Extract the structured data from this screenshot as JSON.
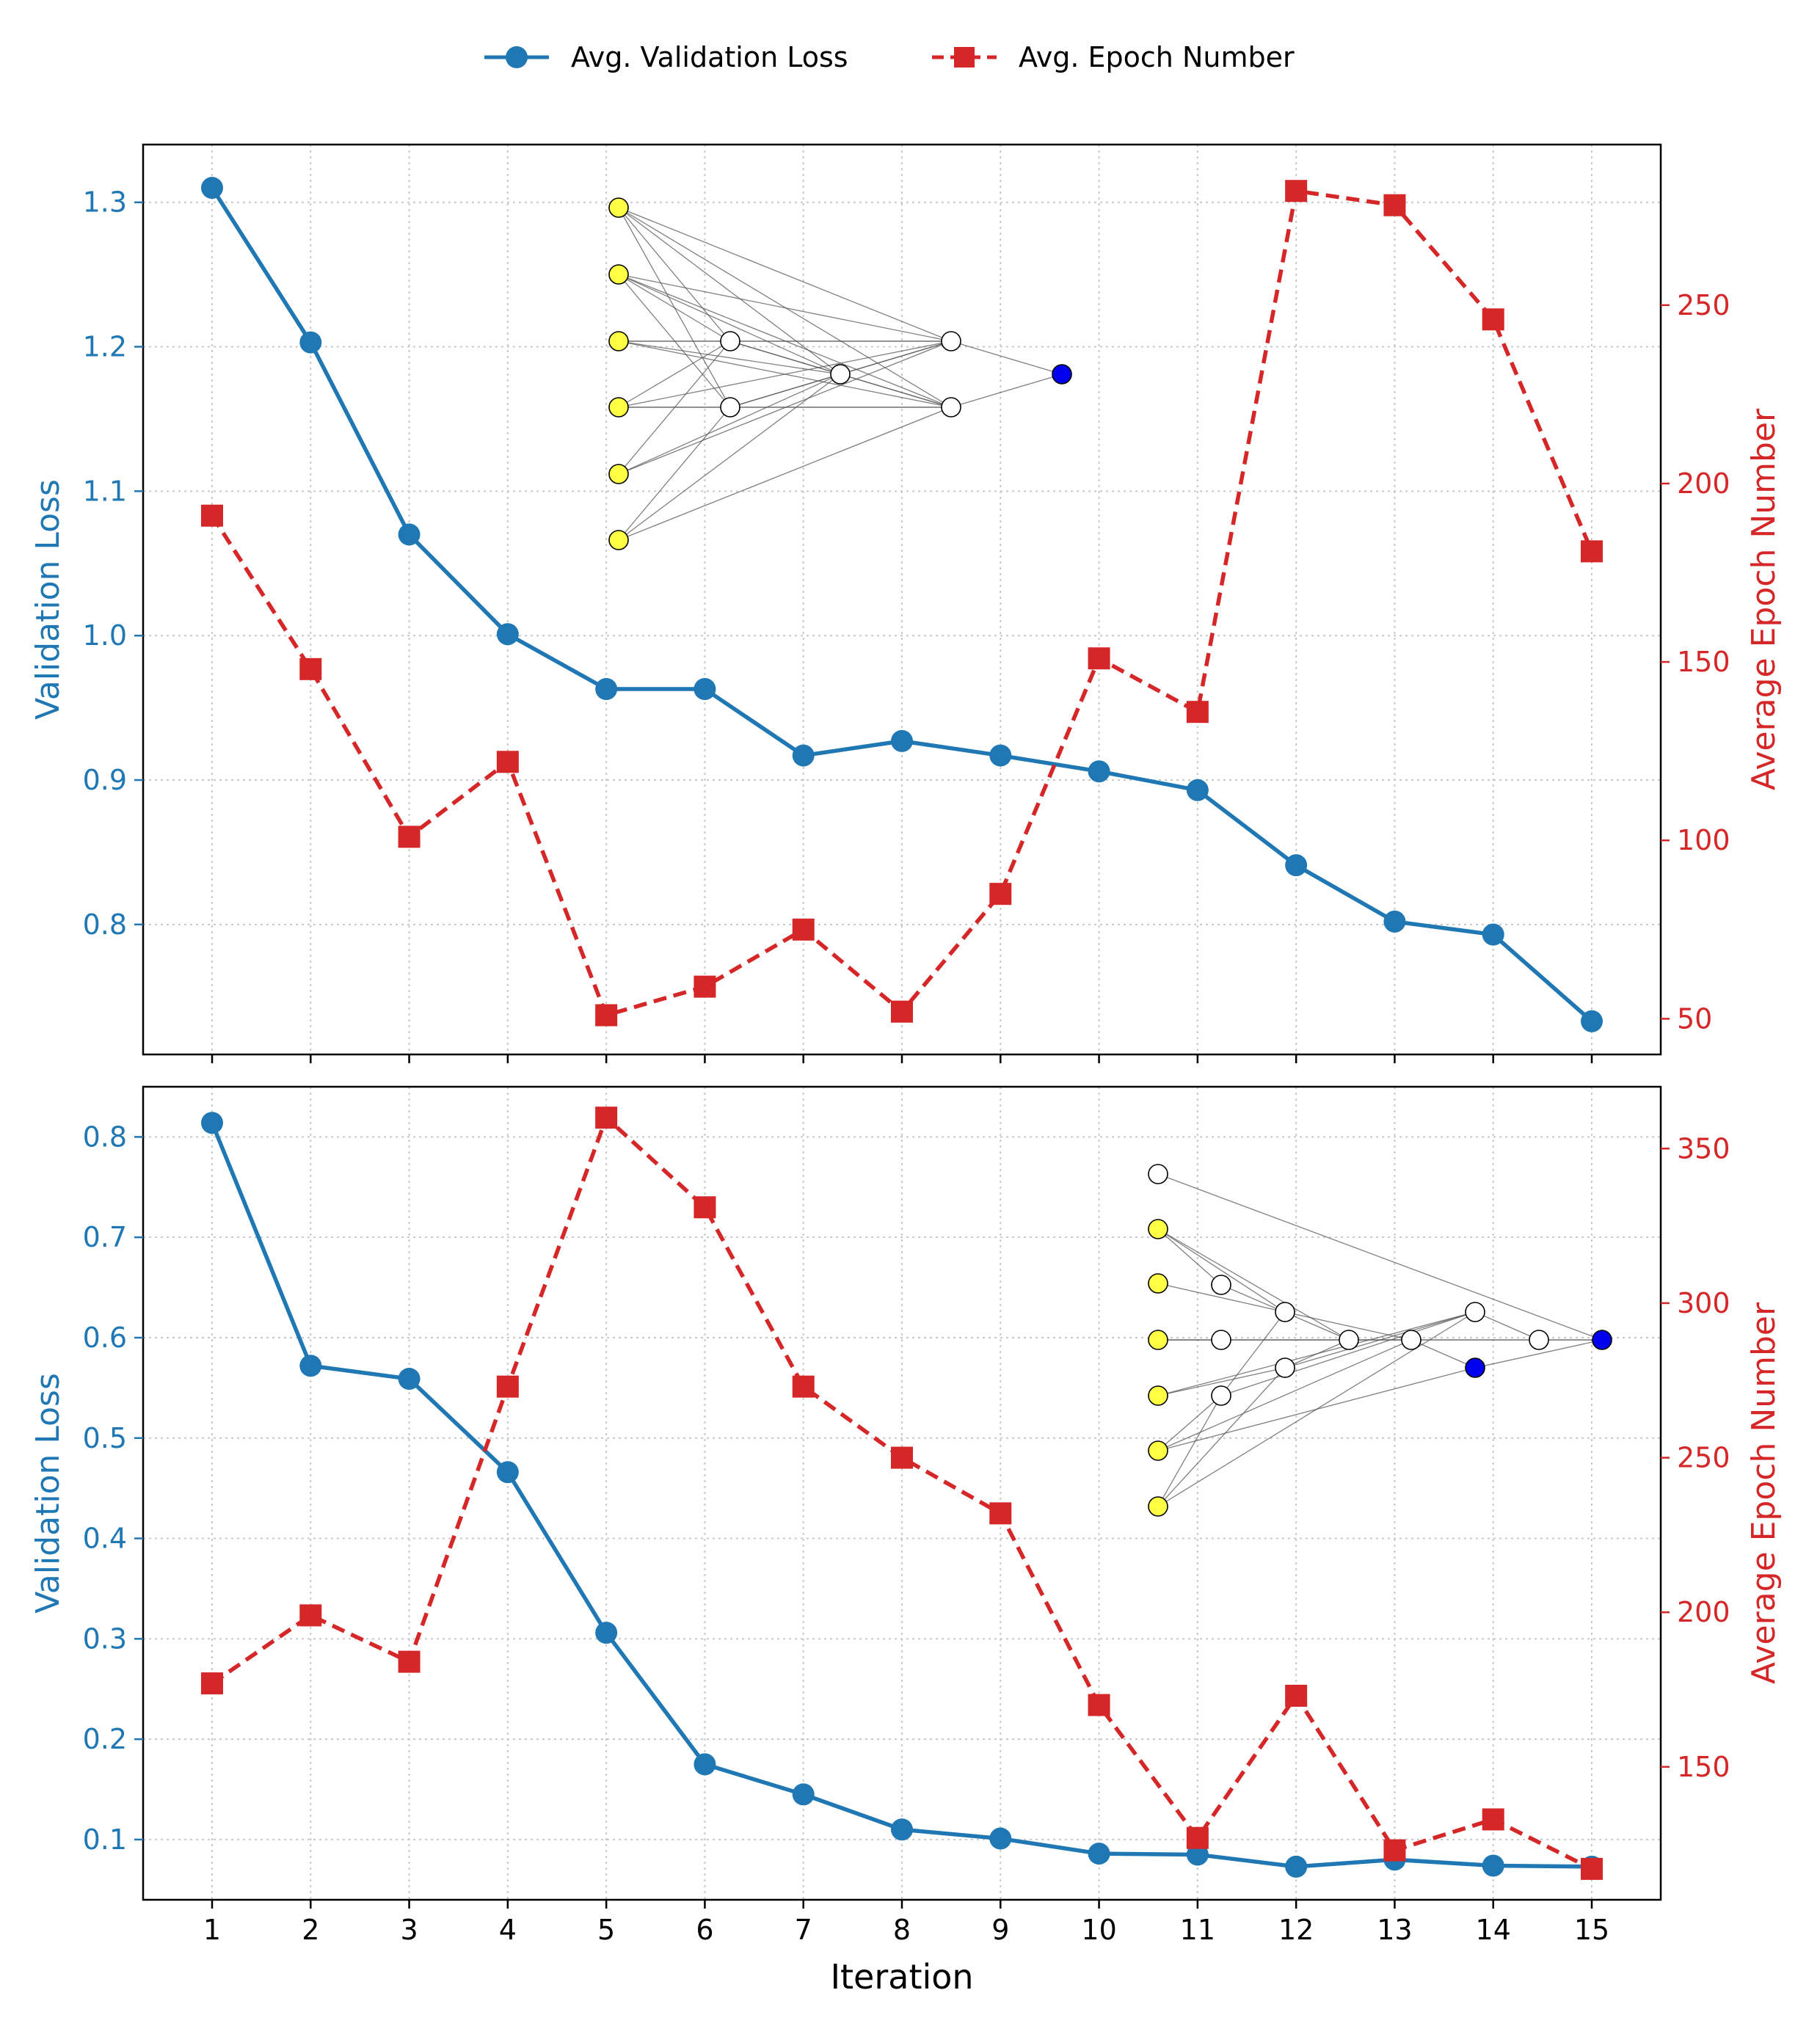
{
  "colors": {
    "loss": "#1f77b4",
    "epoch": "#d62728",
    "input_node": "#ffff44",
    "output_node": "#0000ee",
    "hidden_node": "#ffffff",
    "grid": "#c8c8c8",
    "edge": "#555555"
  },
  "legend": {
    "loss_label": "Avg. Validation Loss",
    "epoch_label": "Avg. Epoch Number"
  },
  "chart_data": [
    {
      "type": "line",
      "panel": "top",
      "x": [
        1,
        2,
        3,
        4,
        5,
        6,
        7,
        8,
        9,
        10,
        11,
        12,
        13,
        14,
        15
      ],
      "xlabel": "",
      "ylabel_left": "Validation Loss",
      "ylabel_right": "Average Epoch Number",
      "ylim_left": [
        0.71,
        1.34
      ],
      "yticks_left": [
        0.8,
        0.9,
        1.0,
        1.1,
        1.2,
        1.3
      ],
      "ylim_right": [
        40,
        295
      ],
      "yticks_right": [
        50,
        100,
        150,
        200,
        250
      ],
      "grid": true,
      "series": [
        {
          "name": "Avg. Validation Loss",
          "axis": "left",
          "style": "solid",
          "marker": "circle",
          "values": [
            1.31,
            1.203,
            1.07,
            1.001,
            0.963,
            0.963,
            0.917,
            0.927,
            0.917,
            0.906,
            0.893,
            0.841,
            0.802,
            0.793,
            0.733
          ]
        },
        {
          "name": "Avg. Epoch Number",
          "axis": "right",
          "style": "dashed",
          "marker": "square",
          "values": [
            191,
            148,
            101,
            122,
            51,
            59,
            75,
            52,
            85,
            151,
            136,
            282,
            278,
            246,
            181
          ]
        }
      ]
    },
    {
      "type": "line",
      "panel": "bottom",
      "x": [
        1,
        2,
        3,
        4,
        5,
        6,
        7,
        8,
        9,
        10,
        11,
        12,
        13,
        14,
        15
      ],
      "xlabel": "Iteration",
      "ylabel_left": "Validation Loss",
      "ylabel_right": "Average Epoch Number",
      "ylim_left": [
        0.04,
        0.85
      ],
      "yticks_left": [
        0.1,
        0.2,
        0.3,
        0.4,
        0.5,
        0.6,
        0.7,
        0.8
      ],
      "ylim_right": [
        107,
        370
      ],
      "yticks_right": [
        150,
        200,
        250,
        300,
        350
      ],
      "grid": true,
      "series": [
        {
          "name": "Avg. Validation Loss",
          "axis": "left",
          "style": "solid",
          "marker": "circle",
          "values": [
            0.814,
            0.572,
            0.559,
            0.466,
            0.306,
            0.175,
            0.145,
            0.11,
            0.101,
            0.086,
            0.085,
            0.073,
            0.08,
            0.074,
            0.073
          ]
        },
        {
          "name": "Avg. Epoch Number",
          "axis": "right",
          "style": "dashed",
          "marker": "square",
          "values": [
            177,
            199,
            184,
            273,
            360,
            331,
            273,
            250,
            232,
            170,
            127,
            173,
            123,
            133,
            117
          ]
        }
      ]
    }
  ]
}
